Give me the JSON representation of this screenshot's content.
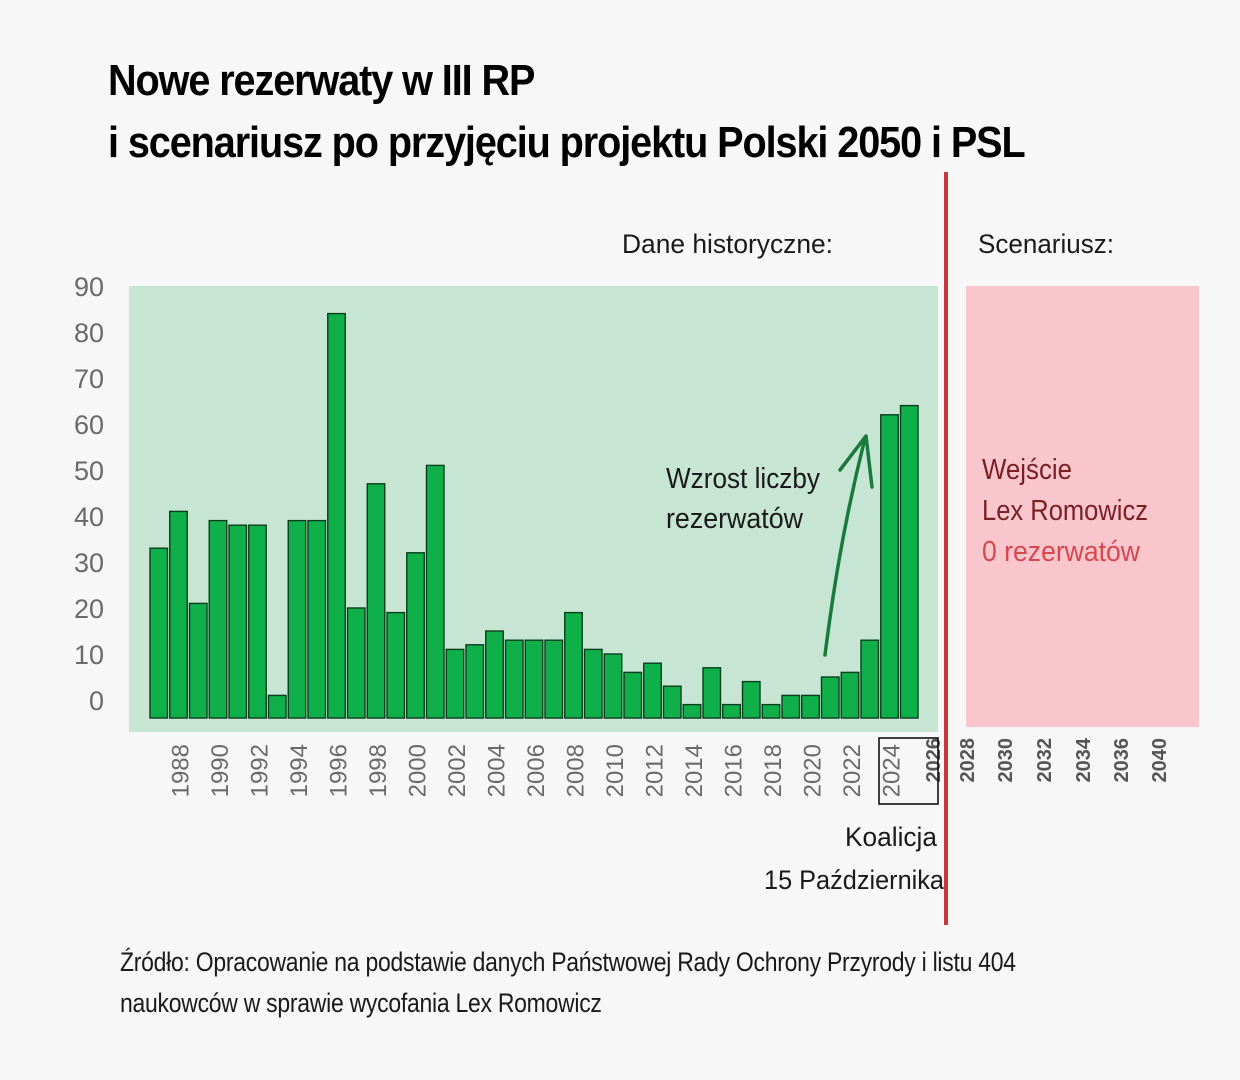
{
  "title": {
    "line1": "Nowe rezerwaty w III RP",
    "line2": "i scenariusz po przyjęciu projektu Polski 2050 i PSL"
  },
  "labels": {
    "historical": "Dane historyczne:",
    "scenario": "Scenariusz:",
    "growth_line1": "Wzrost liczby",
    "growth_line2": "rezerwatów",
    "scenario_line1": "Wejście",
    "scenario_line2": "Lex Romowicz",
    "scenario_line3": "0 rezerwatów",
    "coalition_line1": "Koalicja",
    "coalition_line2": "15 Października"
  },
  "source": {
    "line1": "Źródło: Opracowanie na podstawie danych Państwowej Rady Ochrony Przyrody i listu 404",
    "line2": "naukowców w sprawie wycofania Lex Romowicz"
  },
  "colors": {
    "bar": "#0fb04a",
    "bar_stroke": "#0a3d1c",
    "historical_bg": "#c6e5d3",
    "scenario_bg": "#f9c6ce",
    "divider": "#c8383b",
    "arrow": "#1a7a3c",
    "scenario_text": "#7a1f24",
    "scenario_zero": "#d9474e"
  },
  "chart_data": {
    "type": "bar",
    "categories": [
      "1987",
      "1988",
      "1989",
      "1990",
      "1991",
      "1992",
      "1993",
      "1994",
      "1995",
      "1996",
      "1997",
      "1998",
      "1999",
      "2000",
      "2001",
      "2002",
      "2003",
      "2004",
      "2005",
      "2006",
      "2007",
      "2008",
      "2009",
      "2010",
      "2011",
      "2012",
      "2013",
      "2014",
      "2015",
      "2016",
      "2017",
      "2018",
      "2019",
      "2020",
      "2021",
      "2022",
      "2023",
      "2024",
      "2025"
    ],
    "values": [
      33,
      41,
      21,
      39,
      38,
      38,
      1,
      39,
      39,
      84,
      20,
      47,
      19,
      32,
      51,
      11,
      12,
      15,
      13,
      13,
      13,
      19,
      11,
      10,
      6,
      8,
      3,
      -1,
      7,
      -1,
      4,
      -1,
      1,
      1,
      5,
      6,
      13,
      62,
      64
    ],
    "ylim": [
      0,
      90
    ],
    "yticks": [
      "0",
      "10",
      "20",
      "30",
      "40",
      "50",
      "60",
      "70",
      "80",
      "90"
    ],
    "xticks_historical": [
      "1988",
      "1990",
      "1992",
      "1994",
      "1996",
      "1998",
      "2000",
      "2002",
      "2004",
      "2006",
      "2008",
      "2010",
      "2012",
      "2014",
      "2016",
      "2018",
      "2020",
      "2022",
      "2024"
    ],
    "xticks_scenario": [
      "2026",
      "2028",
      "2030",
      "2032",
      "2034",
      "2036",
      "2040"
    ],
    "highlighted_tick": "2024",
    "grid": false,
    "legend": "none"
  }
}
